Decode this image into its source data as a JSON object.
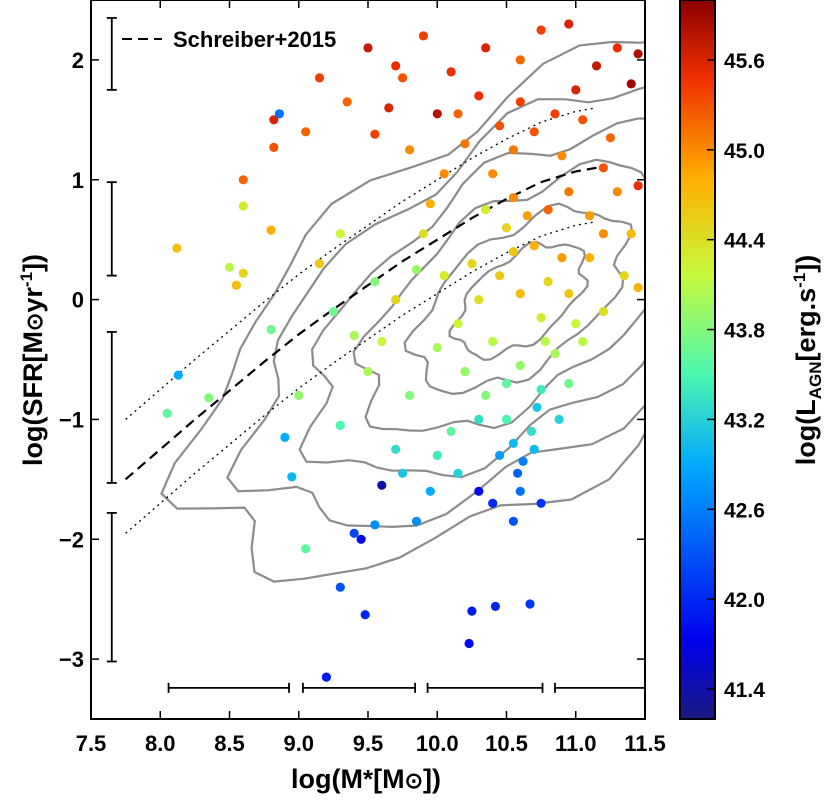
{
  "chart_data": {
    "type": "scatter",
    "title": "",
    "xlabel": "log(M*[M⊙])",
    "ylabel": "log(SFR[M⊙yr⁻¹])",
    "colorbar_label": "log(L_AGN[erg.s⁻¹])",
    "xlim": [
      7.5,
      11.5
    ],
    "ylim": [
      -3.5,
      2.5
    ],
    "x_ticks": [
      7.5,
      8.0,
      8.5,
      9.0,
      9.5,
      10.0,
      10.5,
      11.0,
      11.5
    ],
    "x_tick_labels": [
      "7.5",
      "8.0",
      "8.5",
      "9.0",
      "9.5",
      "10.0",
      "10.5",
      "11.0",
      "11.5"
    ],
    "y_ticks": [
      -3,
      -2,
      -1,
      0,
      1,
      2
    ],
    "y_tick_labels": [
      "−3",
      "−2",
      "−1",
      "0",
      "1",
      "2"
    ],
    "colorbar_range": [
      41.2,
      46.0
    ],
    "colorbar_ticks": [
      41.4,
      42.0,
      42.6,
      43.2,
      43.8,
      44.4,
      45.0,
      45.6
    ],
    "colorbar_tick_labels": [
      "41.4",
      "42.0",
      "42.6",
      "43.2",
      "43.8",
      "44.4",
      "45.0",
      "45.6"
    ],
    "legend": [
      {
        "label": "Schreiber+2015",
        "style": "dashed",
        "position": "top-left"
      }
    ],
    "schreiber_line": {
      "m": [
        7.75,
        8.0,
        8.25,
        8.5,
        8.75,
        9.0,
        9.25,
        9.5,
        9.75,
        10.0,
        10.25,
        10.5,
        10.75,
        11.0,
        11.15
      ],
      "sfr": [
        -1.5,
        -1.25,
        -1.0,
        -0.76,
        -0.52,
        -0.29,
        -0.08,
        0.12,
        0.32,
        0.5,
        0.68,
        0.84,
        0.98,
        1.07,
        1.1
      ]
    },
    "envelope_offsets_dex": [
      0.5,
      -0.45
    ],
    "points": [
      {
        "x": 8.05,
        "y": -0.95,
        "lagn": 43.6
      },
      {
        "x": 8.13,
        "y": -0.63,
        "lagn": 42.9
      },
      {
        "x": 8.12,
        "y": 0.43,
        "lagn": 44.7
      },
      {
        "x": 8.35,
        "y": -0.82,
        "lagn": 43.8
      },
      {
        "x": 8.5,
        "y": 0.27,
        "lagn": 44.1
      },
      {
        "x": 8.55,
        "y": 0.12,
        "lagn": 44.7
      },
      {
        "x": 8.6,
        "y": 0.78,
        "lagn": 44.3
      },
      {
        "x": 8.6,
        "y": 1.0,
        "lagn": 45.2
      },
      {
        "x": 8.8,
        "y": 0.58,
        "lagn": 44.8
      },
      {
        "x": 8.82,
        "y": 1.27,
        "lagn": 45.3
      },
      {
        "x": 8.82,
        "y": 1.5,
        "lagn": 45.6
      },
      {
        "x": 8.86,
        "y": 1.55,
        "lagn": 42.5
      },
      {
        "x": 8.6,
        "y": 0.22,
        "lagn": 44.5
      },
      {
        "x": 8.8,
        "y": -0.25,
        "lagn": 43.7
      },
      {
        "x": 8.9,
        "y": -1.15,
        "lagn": 42.9
      },
      {
        "x": 8.95,
        "y": -1.48,
        "lagn": 43.0
      },
      {
        "x": 9.05,
        "y": -2.08,
        "lagn": 43.6
      },
      {
        "x": 9.3,
        "y": -2.4,
        "lagn": 42.3
      },
      {
        "x": 9.2,
        "y": -3.15,
        "lagn": 41.9
      },
      {
        "x": 9.48,
        "y": -2.63,
        "lagn": 42.0
      },
      {
        "x": 9.45,
        "y": -2.0,
        "lagn": 41.8
      },
      {
        "x": 9.4,
        "y": -1.95,
        "lagn": 42.2
      },
      {
        "x": 9.55,
        "y": -1.88,
        "lagn": 42.7
      },
      {
        "x": 9.6,
        "y": -1.55,
        "lagn": 41.4
      },
      {
        "x": 9.7,
        "y": -1.25,
        "lagn": 43.3
      },
      {
        "x": 9.8,
        "y": -0.8,
        "lagn": 43.8
      },
      {
        "x": 9.5,
        "y": -0.6,
        "lagn": 44.0
      },
      {
        "x": 9.6,
        "y": -0.35,
        "lagn": 44.2
      },
      {
        "x": 9.7,
        "y": 0.0,
        "lagn": 44.5
      },
      {
        "x": 9.85,
        "y": 0.25,
        "lagn": 43.9
      },
      {
        "x": 9.9,
        "y": 0.55,
        "lagn": 44.4
      },
      {
        "x": 9.95,
        "y": 0.8,
        "lagn": 44.8
      },
      {
        "x": 10.05,
        "y": 1.05,
        "lagn": 45.0
      },
      {
        "x": 9.55,
        "y": 1.38,
        "lagn": 45.4
      },
      {
        "x": 9.35,
        "y": 1.65,
        "lagn": 45.2
      },
      {
        "x": 9.5,
        "y": 2.1,
        "lagn": 45.7
      },
      {
        "x": 9.65,
        "y": 1.6,
        "lagn": 45.6
      },
      {
        "x": 9.75,
        "y": 1.85,
        "lagn": 45.3
      },
      {
        "x": 9.9,
        "y": 2.2,
        "lagn": 45.4
      },
      {
        "x": 10.0,
        "y": 1.55,
        "lagn": 45.8
      },
      {
        "x": 10.1,
        "y": 1.9,
        "lagn": 45.5
      },
      {
        "x": 10.2,
        "y": 1.3,
        "lagn": 45.1
      },
      {
        "x": 10.25,
        "y": -2.6,
        "lagn": 41.9
      },
      {
        "x": 10.23,
        "y": -2.87,
        "lagn": 41.8
      },
      {
        "x": 10.42,
        "y": -2.56,
        "lagn": 42.0
      },
      {
        "x": 10.67,
        "y": -2.54,
        "lagn": 42.1
      },
      {
        "x": 10.3,
        "y": -1.6,
        "lagn": 41.8
      },
      {
        "x": 10.4,
        "y": -1.7,
        "lagn": 42.0
      },
      {
        "x": 10.55,
        "y": -1.85,
        "lagn": 42.3
      },
      {
        "x": 10.6,
        "y": -1.6,
        "lagn": 42.5
      },
      {
        "x": 10.75,
        "y": -1.7,
        "lagn": 42.1
      },
      {
        "x": 10.45,
        "y": -1.3,
        "lagn": 42.8
      },
      {
        "x": 10.55,
        "y": -1.2,
        "lagn": 43.0
      },
      {
        "x": 10.62,
        "y": -1.35,
        "lagn": 42.6
      },
      {
        "x": 10.68,
        "y": -1.1,
        "lagn": 43.3
      },
      {
        "x": 10.72,
        "y": -0.9,
        "lagn": 43.1
      },
      {
        "x": 10.5,
        "y": -1.0,
        "lagn": 43.5
      },
      {
        "x": 10.35,
        "y": -0.8,
        "lagn": 43.8
      },
      {
        "x": 10.2,
        "y": -0.6,
        "lagn": 43.9
      },
      {
        "x": 10.1,
        "y": -1.1,
        "lagn": 43.6
      },
      {
        "x": 10.0,
        "y": -1.3,
        "lagn": 43.4
      },
      {
        "x": 9.95,
        "y": -1.6,
        "lagn": 42.9
      },
      {
        "x": 10.15,
        "y": -1.45,
        "lagn": 43.2
      },
      {
        "x": 10.0,
        "y": -0.4,
        "lagn": 44.0
      },
      {
        "x": 10.15,
        "y": -0.2,
        "lagn": 44.2
      },
      {
        "x": 10.3,
        "y": 0.0,
        "lagn": 44.4
      },
      {
        "x": 10.45,
        "y": 0.2,
        "lagn": 44.6
      },
      {
        "x": 10.6,
        "y": 0.05,
        "lagn": 44.7
      },
      {
        "x": 10.75,
        "y": -0.15,
        "lagn": 44.3
      },
      {
        "x": 10.85,
        "y": -0.45,
        "lagn": 44.0
      },
      {
        "x": 10.95,
        "y": -0.7,
        "lagn": 43.7
      },
      {
        "x": 11.05,
        "y": -0.35,
        "lagn": 44.1
      },
      {
        "x": 11.2,
        "y": -0.1,
        "lagn": 44.4
      },
      {
        "x": 10.9,
        "y": 0.35,
        "lagn": 44.9
      },
      {
        "x": 10.7,
        "y": 0.45,
        "lagn": 44.8
      },
      {
        "x": 10.5,
        "y": 0.6,
        "lagn": 44.5
      },
      {
        "x": 10.35,
        "y": 0.75,
        "lagn": 44.3
      },
      {
        "x": 10.55,
        "y": 0.85,
        "lagn": 45.0
      },
      {
        "x": 10.8,
        "y": 0.75,
        "lagn": 45.2
      },
      {
        "x": 10.95,
        "y": 0.9,
        "lagn": 45.1
      },
      {
        "x": 11.1,
        "y": 0.7,
        "lagn": 44.9
      },
      {
        "x": 11.2,
        "y": 1.1,
        "lagn": 45.3
      },
      {
        "x": 11.3,
        "y": 0.9,
        "lagn": 45.0
      },
      {
        "x": 11.45,
        "y": 0.95,
        "lagn": 45.5
      },
      {
        "x": 11.4,
        "y": 0.55,
        "lagn": 44.7
      },
      {
        "x": 11.35,
        "y": 0.2,
        "lagn": 44.5
      },
      {
        "x": 11.45,
        "y": 0.1,
        "lagn": 44.8
      },
      {
        "x": 10.4,
        "y": 1.05,
        "lagn": 45.0
      },
      {
        "x": 10.55,
        "y": 1.25,
        "lagn": 45.1
      },
      {
        "x": 10.7,
        "y": 1.4,
        "lagn": 45.3
      },
      {
        "x": 10.85,
        "y": 1.55,
        "lagn": 45.4
      },
      {
        "x": 11.0,
        "y": 1.75,
        "lagn": 45.6
      },
      {
        "x": 11.15,
        "y": 1.95,
        "lagn": 45.7
      },
      {
        "x": 11.3,
        "y": 2.1,
        "lagn": 45.5
      },
      {
        "x": 11.4,
        "y": 1.8,
        "lagn": 45.9
      },
      {
        "x": 11.45,
        "y": 2.05,
        "lagn": 45.8
      },
      {
        "x": 10.95,
        "y": 2.3,
        "lagn": 45.6
      },
      {
        "x": 10.75,
        "y": 2.25,
        "lagn": 45.4
      },
      {
        "x": 10.6,
        "y": 2.0,
        "lagn": 45.2
      },
      {
        "x": 10.3,
        "y": 1.7,
        "lagn": 45.5
      },
      {
        "x": 10.9,
        "y": 1.2,
        "lagn": 45.0
      },
      {
        "x": 11.25,
        "y": 1.35,
        "lagn": 45.2
      },
      {
        "x": 10.25,
        "y": 0.3,
        "lagn": 44.5
      },
      {
        "x": 10.4,
        "y": -0.35,
        "lagn": 44.1
      },
      {
        "x": 10.6,
        "y": -0.55,
        "lagn": 43.9
      },
      {
        "x": 10.75,
        "y": -0.75,
        "lagn": 43.4
      },
      {
        "x": 10.88,
        "y": -1.0,
        "lagn": 43.2
      },
      {
        "x": 10.95,
        "y": 0.05,
        "lagn": 44.6
      },
      {
        "x": 11.1,
        "y": 0.35,
        "lagn": 44.8
      },
      {
        "x": 9.3,
        "y": 0.55,
        "lagn": 44.2
      },
      {
        "x": 9.15,
        "y": 0.3,
        "lagn": 44.6
      },
      {
        "x": 9.25,
        "y": -0.1,
        "lagn": 43.7
      },
      {
        "x": 9.4,
        "y": -0.3,
        "lagn": 44.0
      },
      {
        "x": 9.55,
        "y": 0.15,
        "lagn": 43.8
      },
      {
        "x": 10.05,
        "y": 0.2,
        "lagn": 44.3
      },
      {
        "x": 10.55,
        "y": 0.4,
        "lagn": 44.6
      },
      {
        "x": 10.8,
        "y": 0.15,
        "lagn": 44.5
      },
      {
        "x": 11.0,
        "y": -0.2,
        "lagn": 44.2
      },
      {
        "x": 10.65,
        "y": 0.7,
        "lagn": 44.9
      },
      {
        "x": 10.45,
        "y": 1.45,
        "lagn": 45.3
      },
      {
        "x": 9.15,
        "y": 1.85,
        "lagn": 45.4
      },
      {
        "x": 9.05,
        "y": 1.4,
        "lagn": 45.2
      },
      {
        "x": 10.35,
        "y": 2.1,
        "lagn": 45.6
      },
      {
        "x": 10.15,
        "y": 1.55,
        "lagn": 45.2
      },
      {
        "x": 9.8,
        "y": 1.25,
        "lagn": 45.0
      },
      {
        "x": 9.7,
        "y": 1.95,
        "lagn": 45.5
      },
      {
        "x": 10.6,
        "y": 1.65,
        "lagn": 45.4
      },
      {
        "x": 11.05,
        "y": 1.5,
        "lagn": 45.3
      },
      {
        "x": 11.2,
        "y": 0.55,
        "lagn": 45.0
      },
      {
        "x": 10.78,
        "y": -0.35,
        "lagn": 44.1
      },
      {
        "x": 10.5,
        "y": -0.7,
        "lagn": 43.6
      },
      {
        "x": 10.3,
        "y": -1.0,
        "lagn": 43.3
      },
      {
        "x": 10.58,
        "y": -1.45,
        "lagn": 42.4
      },
      {
        "x": 10.7,
        "y": -1.25,
        "lagn": 43.0
      },
      {
        "x": 9.0,
        "y": -0.8,
        "lagn": 43.9
      },
      {
        "x": 9.3,
        "y": -1.05,
        "lagn": 43.5
      },
      {
        "x": 9.85,
        "y": -1.85,
        "lagn": 42.7
      },
      {
        "x": 9.75,
        "y": -1.45,
        "lagn": 43.1
      }
    ]
  }
}
